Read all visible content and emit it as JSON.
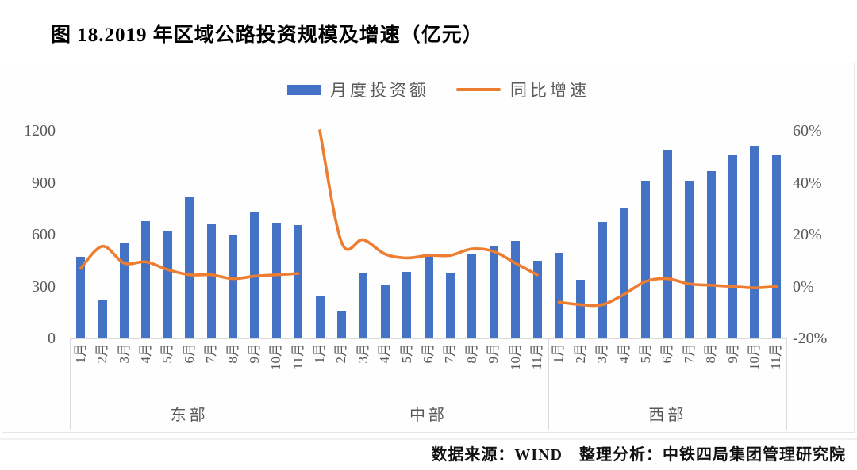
{
  "title": "图 18.2019 年区域公路投资规模及增速（亿元）",
  "legend": {
    "bar_label": "月度投资额",
    "line_label": "同比增速"
  },
  "source": "数据来源：WIND　整理分析：中铁四局集团管理研究院",
  "colors": {
    "bar": "#4472C4",
    "line": "#ED7D31",
    "axis_text": "#595959",
    "border": "#d9d9d9"
  },
  "chart_data": {
    "type": "bar",
    "subtype": "grouped bar + line combo, dual axis",
    "title": "图 18.2019 年区域公路投资规模及增速（亿元）",
    "categories": [
      "1月",
      "2月",
      "3月",
      "4月",
      "5月",
      "6月",
      "7月",
      "8月",
      "9月",
      "10月",
      "11月"
    ],
    "groups": [
      {
        "name": "东部",
        "bars": [
          470,
          225,
          555,
          680,
          625,
          820,
          660,
          600,
          730,
          670,
          655
        ],
        "line_pct": [
          7,
          15.5,
          9,
          9.5,
          6.5,
          4.5,
          4.5,
          3,
          4,
          4.5,
          5
        ]
      },
      {
        "name": "中部",
        "bars": [
          245,
          160,
          380,
          305,
          385,
          485,
          380,
          485,
          530,
          565,
          450
        ],
        "line_pct": [
          60,
          17,
          18,
          12.5,
          11,
          12,
          12,
          14.5,
          13.5,
          9,
          4.5
        ]
      },
      {
        "name": "西部",
        "bars": [
          495,
          340,
          675,
          750,
          910,
          1090,
          910,
          965,
          1065,
          1115,
          1060
        ],
        "line_pct": [
          -6,
          -7,
          -7,
          -3,
          2,
          3,
          1,
          0.5,
          0,
          -0.5,
          0
        ]
      }
    ],
    "left_axis": {
      "series": "月度投资额",
      "ticks": [
        0,
        300,
        600,
        900,
        1200
      ],
      "min": 0,
      "max": 1200
    },
    "right_axis": {
      "series": "同比增速",
      "ticks": [
        "-20%",
        "0%",
        "20%",
        "40%",
        "60%"
      ],
      "min": -20,
      "max": 60
    },
    "grid": false,
    "legend_position": "top-center"
  }
}
